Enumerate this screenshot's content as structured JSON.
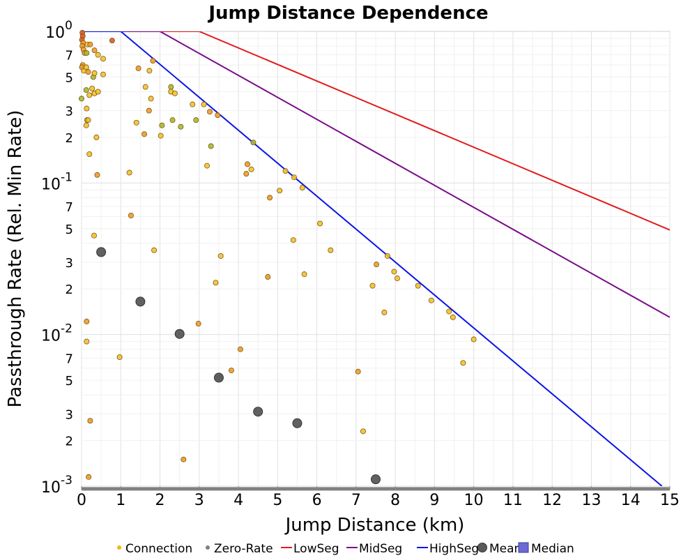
{
  "chart_data": {
    "type": "scatter",
    "title": "Jump Distance Dependence",
    "xlabel": "Jump Distance (km)",
    "ylabel": "Passthrough Rate (Rel. Min Rate)",
    "x_scale": "linear",
    "y_scale": "log",
    "xlim": [
      0,
      15
    ],
    "ylim": [
      0.001,
      1
    ],
    "x_ticks": [
      "0",
      "1",
      "2",
      "3",
      "4",
      "5",
      "6",
      "7",
      "8",
      "9",
      "10",
      "11",
      "12",
      "13",
      "14",
      "15"
    ],
    "y_major_ticks": [
      {
        "value": 1,
        "base": "10",
        "exp": "0"
      },
      {
        "value": 0.1,
        "base": "10",
        "exp": "-1"
      },
      {
        "value": 0.01,
        "base": "10",
        "exp": "-2"
      },
      {
        "value": 0.001,
        "base": "10",
        "exp": "-3"
      }
    ],
    "y_minor_labels": [
      "7",
      "5",
      "3",
      "2"
    ],
    "grid": true,
    "legend_position": "bottom",
    "colors": {
      "connection": "#f5b800",
      "zero_rate": "#808080",
      "low_seg": "#e31a1c",
      "mid_seg": "#7a0a8a",
      "high_seg": "#0a14e6",
      "mean": "#595959",
      "median": "#6a6ad0"
    },
    "legend": [
      {
        "label": "Connection",
        "marker": "dot",
        "color": "#f5b800"
      },
      {
        "label": "Zero-Rate",
        "marker": "dot",
        "color": "#808080"
      },
      {
        "label": "LowSeg",
        "marker": "line",
        "color": "#e31a1c"
      },
      {
        "label": "MidSeg",
        "marker": "line",
        "color": "#7a0a8a"
      },
      {
        "label": "HighSeg",
        "marker": "line",
        "color": "#0a14e6"
      },
      {
        "label": "Mean",
        "marker": "bigdot",
        "color": "#595959"
      },
      {
        "label": "Median",
        "marker": "square",
        "color": "#6a6ad0"
      }
    ],
    "series": {
      "lines": [
        {
          "name": "LowSeg",
          "x": [
            0,
            3.0,
            15
          ],
          "y": [
            1,
            1,
            0.049
          ]
        },
        {
          "name": "MidSeg",
          "x": [
            0,
            2.0,
            15
          ],
          "y": [
            1,
            1,
            0.013
          ]
        },
        {
          "name": "HighSeg",
          "x": [
            0,
            1.0,
            14.8
          ],
          "y": [
            1,
            1,
            0.001
          ]
        }
      ],
      "mean": {
        "x": [
          0.5,
          1.5,
          2.5,
          3.5,
          4.5,
          5.5,
          7.5
        ],
        "y": [
          0.035,
          0.0165,
          0.0101,
          0.0052,
          0.0031,
          0.0026,
          0.00111
        ]
      },
      "zero_rate": {
        "x_start": 0,
        "x_end": 15,
        "y": 0.00096
      },
      "connection_points": [
        {
          "x": 0.02,
          "y": 0.98,
          "tone": "red"
        },
        {
          "x": 0.03,
          "y": 0.93,
          "tone": "red"
        },
        {
          "x": 0.01,
          "y": 0.88,
          "tone": "red"
        },
        {
          "x": 0.04,
          "y": 0.84,
          "tone": "orange"
        },
        {
          "x": 0.02,
          "y": 0.8,
          "tone": "orange"
        },
        {
          "x": 0.05,
          "y": 0.76,
          "tone": "orange"
        },
        {
          "x": 0.08,
          "y": 0.72,
          "tone": "orange"
        },
        {
          "x": 0.03,
          "y": 0.6,
          "tone": "orange"
        },
        {
          "x": 0.01,
          "y": 0.58,
          "tone": "orange"
        },
        {
          "x": 0.06,
          "y": 0.55,
          "tone": "yellow"
        },
        {
          "x": 0.12,
          "y": 0.58,
          "tone": "yellow"
        },
        {
          "x": 0.15,
          "y": 0.82,
          "tone": "yellow"
        },
        {
          "x": 0.13,
          "y": 0.72,
          "tone": "green"
        },
        {
          "x": 0.22,
          "y": 0.82,
          "tone": "orange"
        },
        {
          "x": 0.33,
          "y": 0.75,
          "tone": "orange"
        },
        {
          "x": 0.42,
          "y": 0.7,
          "tone": "yellow"
        },
        {
          "x": 0.55,
          "y": 0.66,
          "tone": "yellow"
        },
        {
          "x": 0.78,
          "y": 0.87,
          "tone": "red"
        },
        {
          "x": 0.17,
          "y": 0.54,
          "tone": "orange"
        },
        {
          "x": 0.3,
          "y": 0.5,
          "tone": "green"
        },
        {
          "x": 0.33,
          "y": 0.53,
          "tone": "yellow"
        },
        {
          "x": 0.55,
          "y": 0.52,
          "tone": "yellow"
        },
        {
          "x": 0.12,
          "y": 0.41,
          "tone": "green"
        },
        {
          "x": 0.2,
          "y": 0.38,
          "tone": "yellow"
        },
        {
          "x": 0.27,
          "y": 0.42,
          "tone": "yellow"
        },
        {
          "x": 0.33,
          "y": 0.39,
          "tone": "yellow"
        },
        {
          "x": 0.42,
          "y": 0.4,
          "tone": "yellow"
        },
        {
          "x": 0.0,
          "y": 0.36,
          "tone": "green"
        },
        {
          "x": 0.13,
          "y": 0.31,
          "tone": "yellow"
        },
        {
          "x": 0.14,
          "y": 0.26,
          "tone": "green"
        },
        {
          "x": 0.17,
          "y": 0.26,
          "tone": "yellow"
        },
        {
          "x": 0.12,
          "y": 0.24,
          "tone": "yellow"
        },
        {
          "x": 0.38,
          "y": 0.2,
          "tone": "yellow"
        },
        {
          "x": 0.2,
          "y": 0.155,
          "tone": "yellow"
        },
        {
          "x": 0.4,
          "y": 0.113,
          "tone": "orange"
        },
        {
          "x": 0.32,
          "y": 0.045,
          "tone": "yellow"
        },
        {
          "x": 0.13,
          "y": 0.0122,
          "tone": "orange"
        },
        {
          "x": 0.13,
          "y": 0.009,
          "tone": "yellow"
        },
        {
          "x": 0.22,
          "y": 0.0027,
          "tone": "orange"
        },
        {
          "x": 0.18,
          "y": 0.00115,
          "tone": "orange"
        },
        {
          "x": 0.97,
          "y": 0.0071,
          "tone": "yellow"
        },
        {
          "x": 1.22,
          "y": 0.117,
          "tone": "yellow"
        },
        {
          "x": 1.26,
          "y": 0.061,
          "tone": "orange"
        },
        {
          "x": 1.45,
          "y": 0.57,
          "tone": "orange"
        },
        {
          "x": 1.63,
          "y": 0.43,
          "tone": "yellow"
        },
        {
          "x": 1.73,
          "y": 0.55,
          "tone": "yellow"
        },
        {
          "x": 1.82,
          "y": 0.64,
          "tone": "orange"
        },
        {
          "x": 1.77,
          "y": 0.36,
          "tone": "yellow"
        },
        {
          "x": 1.72,
          "y": 0.3,
          "tone": "orange"
        },
        {
          "x": 1.4,
          "y": 0.25,
          "tone": "yellow"
        },
        {
          "x": 1.6,
          "y": 0.21,
          "tone": "orange"
        },
        {
          "x": 1.85,
          "y": 0.036,
          "tone": "yellow"
        },
        {
          "x": 2.28,
          "y": 0.43,
          "tone": "green"
        },
        {
          "x": 2.28,
          "y": 0.4,
          "tone": "yellow"
        },
        {
          "x": 2.38,
          "y": 0.39,
          "tone": "yellow"
        },
        {
          "x": 2.32,
          "y": 0.26,
          "tone": "green"
        },
        {
          "x": 2.05,
          "y": 0.24,
          "tone": "green"
        },
        {
          "x": 2.02,
          "y": 0.205,
          "tone": "yellow"
        },
        {
          "x": 2.53,
          "y": 0.235,
          "tone": "green"
        },
        {
          "x": 2.92,
          "y": 0.26,
          "tone": "green"
        },
        {
          "x": 2.83,
          "y": 0.33,
          "tone": "yellow"
        },
        {
          "x": 3.12,
          "y": 0.33,
          "tone": "yellow"
        },
        {
          "x": 3.27,
          "y": 0.295,
          "tone": "orange"
        },
        {
          "x": 3.47,
          "y": 0.28,
          "tone": "orange"
        },
        {
          "x": 3.3,
          "y": 0.175,
          "tone": "green"
        },
        {
          "x": 3.2,
          "y": 0.13,
          "tone": "yellow"
        },
        {
          "x": 2.6,
          "y": 0.0015,
          "tone": "orange"
        },
        {
          "x": 2.98,
          "y": 0.0118,
          "tone": "orange"
        },
        {
          "x": 3.42,
          "y": 0.022,
          "tone": "yellow"
        },
        {
          "x": 3.55,
          "y": 0.033,
          "tone": "yellow"
        },
        {
          "x": 3.52,
          "y": 0.0052,
          "tone": "orange"
        },
        {
          "x": 3.82,
          "y": 0.0058,
          "tone": "orange"
        },
        {
          "x": 4.05,
          "y": 0.008,
          "tone": "orange"
        },
        {
          "x": 4.75,
          "y": 0.024,
          "tone": "orange"
        },
        {
          "x": 4.38,
          "y": 0.185,
          "tone": "green"
        },
        {
          "x": 4.23,
          "y": 0.133,
          "tone": "orange"
        },
        {
          "x": 4.33,
          "y": 0.123,
          "tone": "yellow"
        },
        {
          "x": 4.2,
          "y": 0.115,
          "tone": "orange"
        },
        {
          "x": 4.8,
          "y": 0.08,
          "tone": "orange"
        },
        {
          "x": 5.05,
          "y": 0.089,
          "tone": "yellow"
        },
        {
          "x": 5.2,
          "y": 0.12,
          "tone": "yellow"
        },
        {
          "x": 5.42,
          "y": 0.109,
          "tone": "yellow"
        },
        {
          "x": 5.63,
          "y": 0.093,
          "tone": "yellow"
        },
        {
          "x": 5.4,
          "y": 0.042,
          "tone": "yellow"
        },
        {
          "x": 5.68,
          "y": 0.025,
          "tone": "yellow"
        },
        {
          "x": 6.08,
          "y": 0.054,
          "tone": "yellow"
        },
        {
          "x": 6.35,
          "y": 0.036,
          "tone": "yellow"
        },
        {
          "x": 7.05,
          "y": 0.0057,
          "tone": "orange"
        },
        {
          "x": 7.18,
          "y": 0.0023,
          "tone": "yellow"
        },
        {
          "x": 7.42,
          "y": 0.021,
          "tone": "yellow"
        },
        {
          "x": 7.52,
          "y": 0.029,
          "tone": "orange"
        },
        {
          "x": 7.72,
          "y": 0.014,
          "tone": "yellow"
        },
        {
          "x": 7.8,
          "y": 0.033,
          "tone": "yellow"
        },
        {
          "x": 7.97,
          "y": 0.026,
          "tone": "yellow"
        },
        {
          "x": 8.05,
          "y": 0.0235,
          "tone": "yellow"
        },
        {
          "x": 8.58,
          "y": 0.021,
          "tone": "yellow"
        },
        {
          "x": 8.92,
          "y": 0.0168,
          "tone": "yellow"
        },
        {
          "x": 9.37,
          "y": 0.0142,
          "tone": "yellow"
        },
        {
          "x": 9.47,
          "y": 0.013,
          "tone": "yellow"
        },
        {
          "x": 9.73,
          "y": 0.0065,
          "tone": "yellow"
        },
        {
          "x": 10.0,
          "y": 0.0093,
          "tone": "yellow"
        }
      ]
    }
  }
}
